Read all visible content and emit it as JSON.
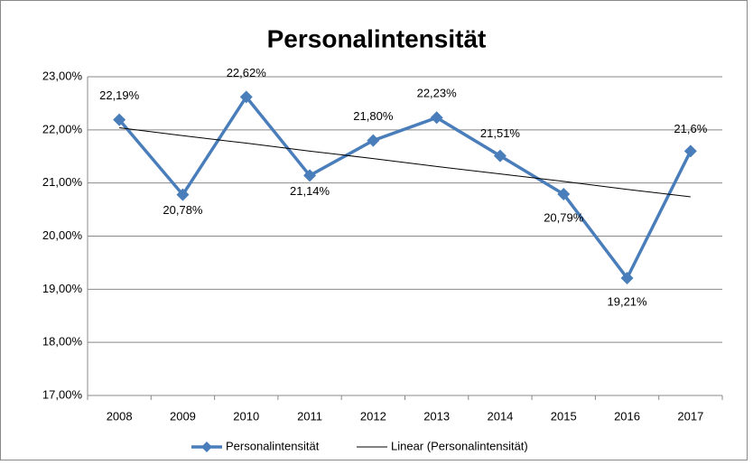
{
  "chart_data": {
    "type": "line",
    "title": "Personalintensität",
    "categories": [
      "2008",
      "2009",
      "2010",
      "2011",
      "2012",
      "2013",
      "2014",
      "2015",
      "2016",
      "2017"
    ],
    "series": [
      {
        "name": "Personalintensität",
        "color": "#4a7ebb",
        "values": [
          22.19,
          20.78,
          22.62,
          21.14,
          21.8,
          22.23,
          21.51,
          20.79,
          19.21,
          21.6
        ],
        "value_labels": [
          "22,19%",
          "20,78%",
          "22,62%",
          "21,14%",
          "21,80%",
          "22,23%",
          "21,51%",
          "20,79%",
          "19,21%",
          "21,6%"
        ]
      },
      {
        "name": "Linear (Personalintensität)",
        "color": "#000000",
        "values": [
          22.04,
          21.89,
          21.75,
          21.6,
          21.46,
          21.31,
          21.17,
          21.03,
          20.88,
          20.74
        ]
      }
    ],
    "ylim": [
      17,
      23
    ],
    "yticks": [
      {
        "value": 17,
        "label": "17,00%"
      },
      {
        "value": 18,
        "label": "18,00%"
      },
      {
        "value": 19,
        "label": "19,00%"
      },
      {
        "value": 20,
        "label": "20,00%"
      },
      {
        "value": 21,
        "label": "21,00%"
      },
      {
        "value": 22,
        "label": "22,00%"
      },
      {
        "value": 23,
        "label": "23,00%"
      }
    ],
    "grid": true,
    "legend": "bottom"
  }
}
